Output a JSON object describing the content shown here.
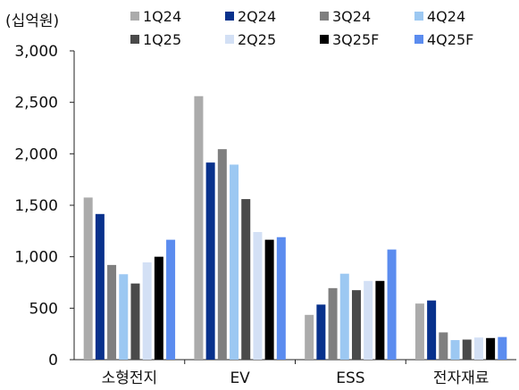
{
  "chart_data": {
    "type": "bar",
    "unit_label": "(십억원)",
    "categories": [
      "소형전지",
      "EV",
      "ESS",
      "전자재료"
    ],
    "yticks": [
      "3,000",
      "2,500",
      "2,000",
      "1,500",
      "1,000",
      "500",
      "0"
    ],
    "ylim": [
      0,
      3000
    ],
    "grid": false,
    "legend_position": "top",
    "series": [
      {
        "name": "1Q24",
        "color": "#ababab",
        "values": [
          1575,
          2560,
          435,
          545
        ]
      },
      {
        "name": "2Q24",
        "color": "#08318c",
        "values": [
          1415,
          1915,
          535,
          575
        ]
      },
      {
        "name": "3Q24",
        "color": "#7f7f7f",
        "values": [
          920,
          2045,
          695,
          265
        ]
      },
      {
        "name": "4Q24",
        "color": "#9cc8f2",
        "values": [
          830,
          1895,
          835,
          190
        ]
      },
      {
        "name": "1Q25",
        "color": "#4a4a4a",
        "values": [
          740,
          1560,
          675,
          195
        ]
      },
      {
        "name": "2Q25",
        "color": "#d3e0f5",
        "values": [
          945,
          1240,
          765,
          215
        ]
      },
      {
        "name": "3Q25F",
        "color": "#000000",
        "values": [
          1000,
          1165,
          765,
          210
        ]
      },
      {
        "name": "4Q25F",
        "color": "#5b8cef",
        "values": [
          1165,
          1190,
          1070,
          220
        ]
      }
    ]
  }
}
